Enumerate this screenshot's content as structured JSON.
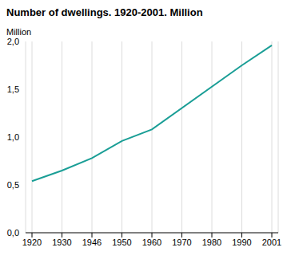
{
  "chart_data": {
    "type": "line",
    "title": "Number of dwellings. 1920-2001. Million",
    "ylabel": "Million",
    "categories": [
      "1920",
      "1930",
      "1946",
      "1950",
      "1960",
      "1970",
      "1980",
      "1990",
      "2001"
    ],
    "values": [
      0.54,
      0.65,
      0.78,
      0.96,
      1.08,
      null,
      null,
      1.75,
      1.96
    ],
    "color": "#1a9e96",
    "ylim": [
      0,
      2
    ],
    "yticks": [
      {
        "value": 0,
        "label": "0,0"
      },
      {
        "value": 0.5,
        "label": "0,5"
      },
      {
        "value": 1,
        "label": "1,0"
      },
      {
        "value": 1.5,
        "label": "1,5"
      },
      {
        "value": 2,
        "label": "2,0"
      }
    ],
    "grid": true
  }
}
